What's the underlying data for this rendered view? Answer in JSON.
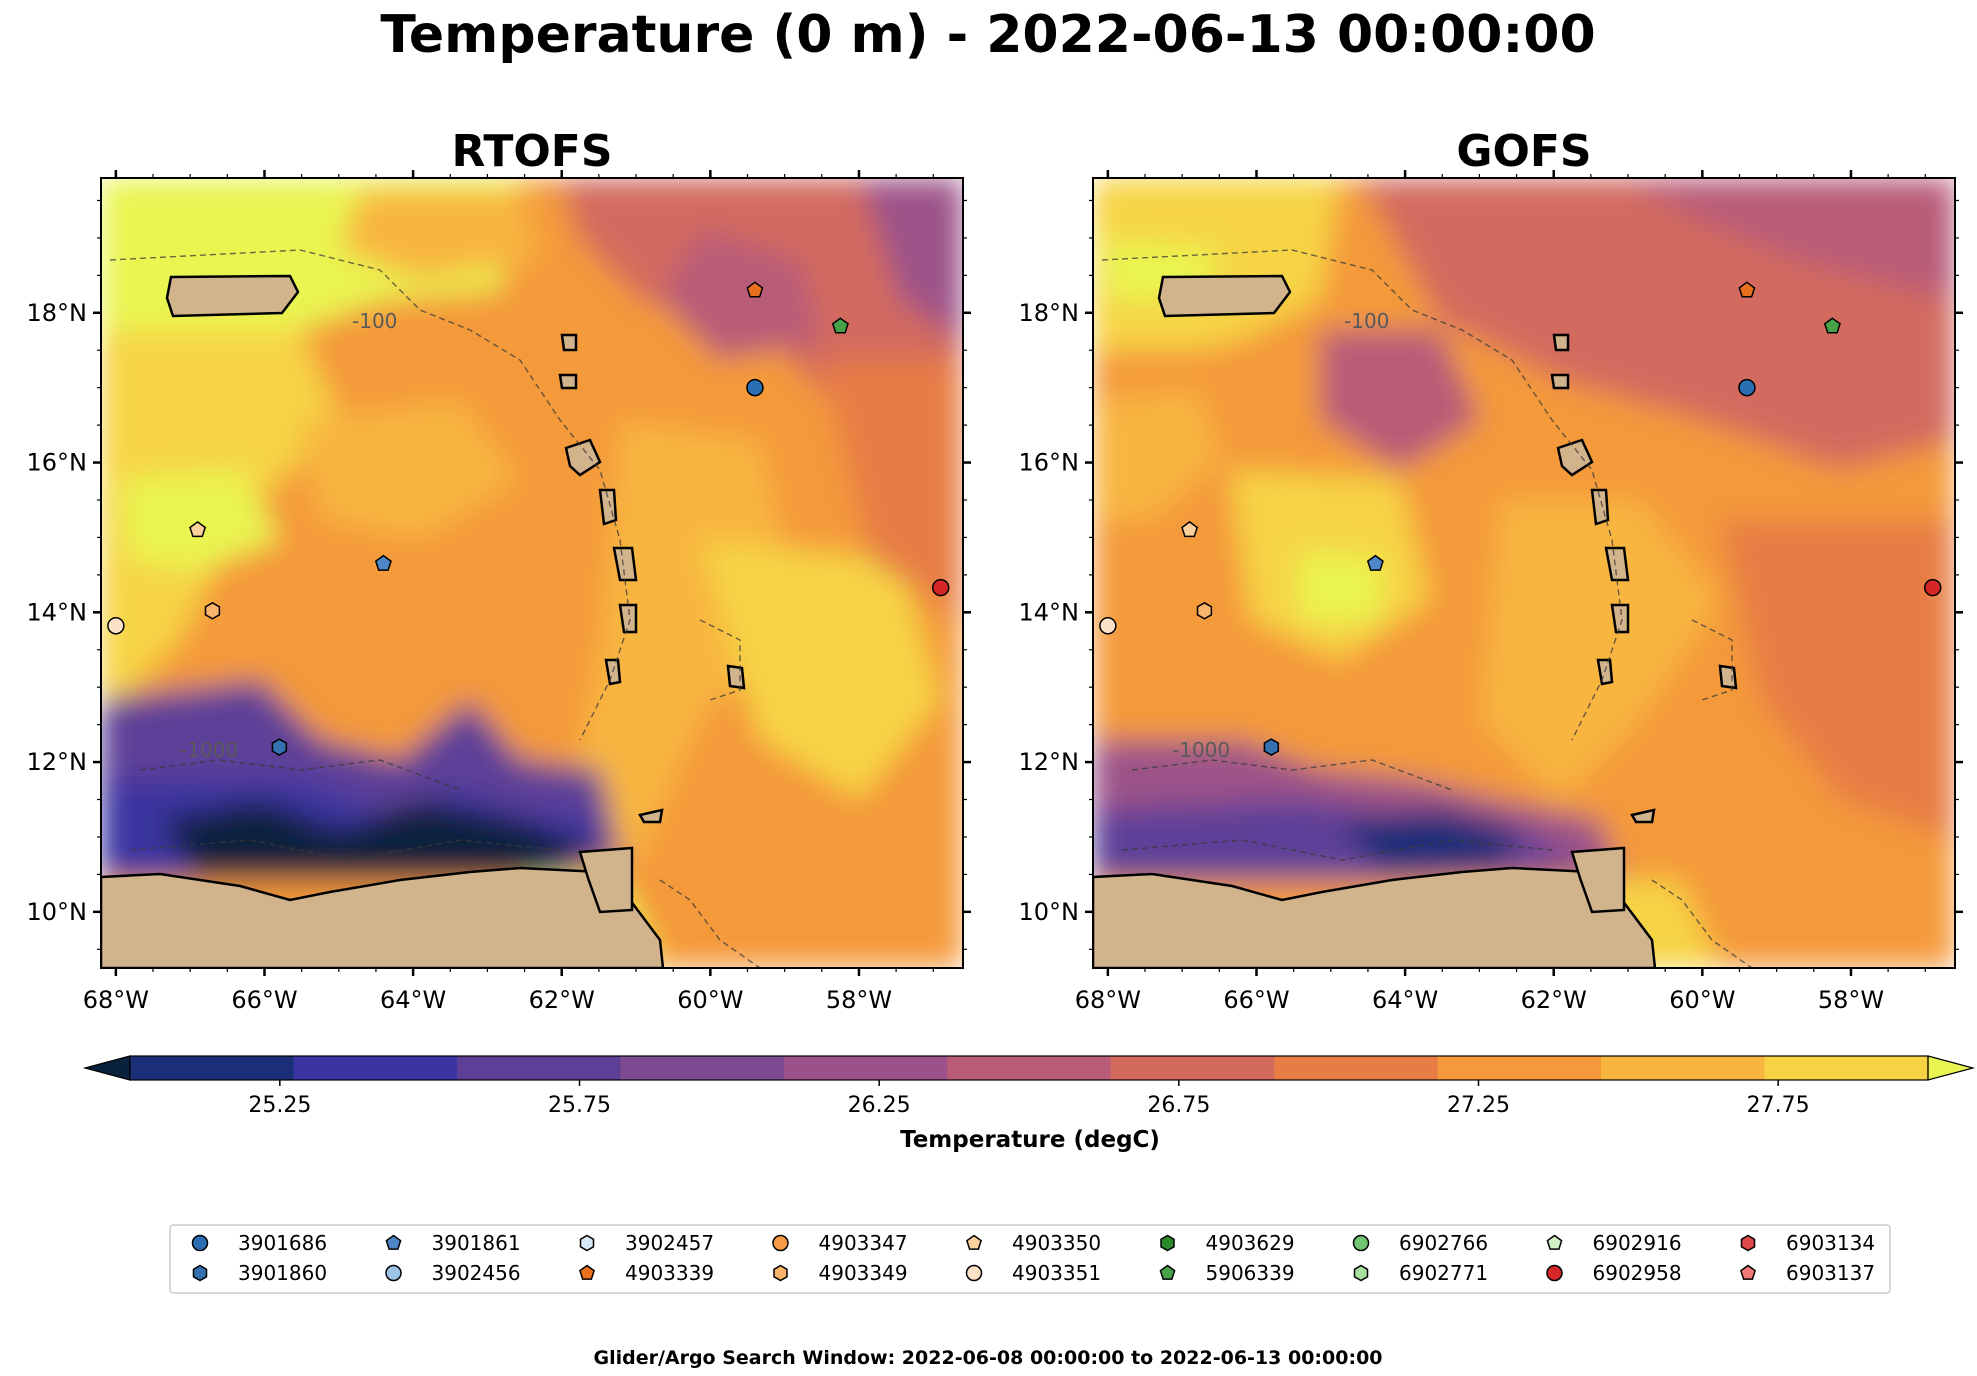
{
  "figure": {
    "title": "Temperature (0 m) - 2022-06-13 00:00:00",
    "footer": "Glider/Argo Search Window: 2022-06-08 00:00:00 to 2022-06-13 00:00:00"
  },
  "panels": [
    {
      "title": "RTOFS",
      "model": "rtofs"
    },
    {
      "title": "GOFS",
      "model": "gofs"
    }
  ],
  "axes": {
    "lon_range": [
      -68.2,
      -56.6
    ],
    "lat_range": [
      9.25,
      19.8
    ],
    "x_ticks": [
      {
        "value": -68,
        "label": "68°W"
      },
      {
        "value": -66,
        "label": "66°W"
      },
      {
        "value": -64,
        "label": "64°W"
      },
      {
        "value": -62,
        "label": "62°W"
      },
      {
        "value": -60,
        "label": "60°W"
      },
      {
        "value": -58,
        "label": "58°W"
      }
    ],
    "y_ticks": [
      {
        "value": 10,
        "label": "10°N"
      },
      {
        "value": 12,
        "label": "12°N"
      },
      {
        "value": 14,
        "label": "14°N"
      },
      {
        "value": 16,
        "label": "16°N"
      },
      {
        "value": 18,
        "label": "18°N"
      }
    ]
  },
  "colorbar": {
    "label": "Temperature (degC)",
    "range": [
      25.0,
      28.0
    ],
    "tick_labels": [
      {
        "value": 25.25,
        "label": "25.25"
      },
      {
        "value": 25.75,
        "label": "25.75"
      },
      {
        "value": 26.25,
        "label": "26.25"
      },
      {
        "value": 26.75,
        "label": "26.75"
      },
      {
        "value": 27.25,
        "label": "27.25"
      },
      {
        "value": 27.75,
        "label": "27.75"
      }
    ],
    "colors": [
      "#08213d",
      "#1a2f78",
      "#3a35a0",
      "#5d3f98",
      "#7b4a91",
      "#9c5288",
      "#b85c78",
      "#d36a5e",
      "#e77d44",
      "#f49a3a",
      "#f8b53f",
      "#f6d444",
      "#e9f551"
    ]
  },
  "contour_labels": [
    "-1000",
    "-100"
  ],
  "floats": [
    {
      "id": "3901686",
      "marker": "circle",
      "color": "#2a6fb4",
      "lon": -59.4,
      "lat": 17.0,
      "shown": true
    },
    {
      "id": "3901860",
      "marker": "hexagon",
      "color": "#3570b0",
      "lon": -65.8,
      "lat": 12.2,
      "shown": true
    },
    {
      "id": "3901861",
      "marker": "pentagon",
      "color": "#4e86c8",
      "lon": -64.4,
      "lat": 14.65,
      "shown": true
    },
    {
      "id": "3902456",
      "marker": "circle",
      "color": "#9cc4e6",
      "shown": false
    },
    {
      "id": "3902457",
      "marker": "hexagon",
      "color": "#d4e8f8",
      "shown": false
    },
    {
      "id": "4903339",
      "marker": "pentagon",
      "color": "#e9701c",
      "lon": -59.4,
      "lat": 18.3,
      "shown": true
    },
    {
      "id": "4903347",
      "marker": "circle",
      "color": "#f59a45",
      "shown": false
    },
    {
      "id": "4903349",
      "marker": "hexagon",
      "color": "#f9b36b",
      "lon": -66.7,
      "lat": 14.02,
      "shown": true
    },
    {
      "id": "4903350",
      "marker": "pentagon",
      "color": "#fbd09a",
      "lon": -66.9,
      "lat": 15.1,
      "shown": true
    },
    {
      "id": "4903351",
      "marker": "circle",
      "color": "#fde2c8",
      "lon": -68.0,
      "lat": 13.82,
      "shown": true
    },
    {
      "id": "4903629",
      "marker": "hexagon",
      "color": "#2c8a2c",
      "shown": false
    },
    {
      "id": "5906339",
      "marker": "pentagon",
      "color": "#47a347",
      "lon": -58.25,
      "lat": 17.82,
      "shown": true
    },
    {
      "id": "6902766",
      "marker": "circle",
      "color": "#72c672",
      "shown": false
    },
    {
      "id": "6902771",
      "marker": "hexagon",
      "color": "#a9e0a0",
      "shown": false
    },
    {
      "id": "6902916",
      "marker": "pentagon",
      "color": "#d0f1c4",
      "shown": false
    },
    {
      "id": "6902958",
      "marker": "circle",
      "color": "#d62728",
      "lon": -56.9,
      "lat": 14.33,
      "shown": true
    },
    {
      "id": "6903134",
      "marker": "hexagon",
      "color": "#e34848",
      "shown": false
    },
    {
      "id": "6903137",
      "marker": "pentagon",
      "color": "#f07a78",
      "shown": false
    }
  ]
}
